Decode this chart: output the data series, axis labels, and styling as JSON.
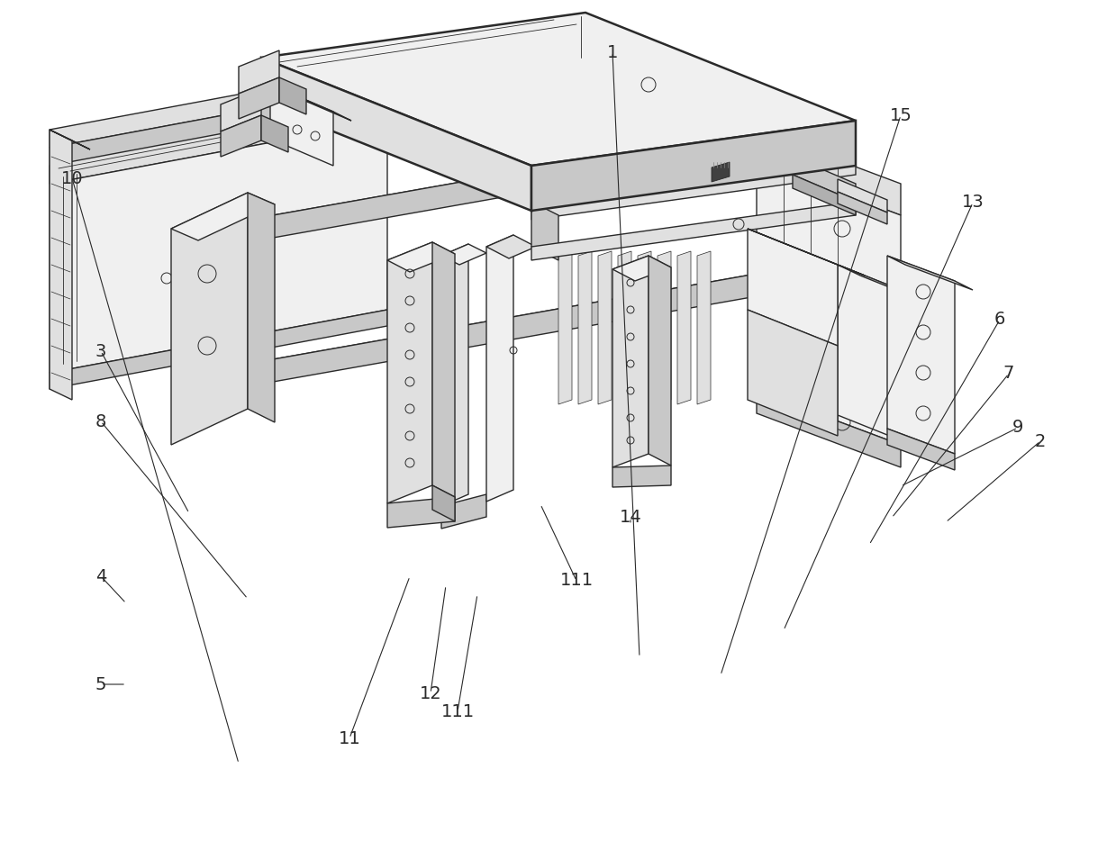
{
  "bg": "#ffffff",
  "lc": "#2a2a2a",
  "lw": 1.0,
  "tlw": 0.6,
  "thw": 1.8,
  "fig_w": 12.39,
  "fig_h": 9.34,
  "dpi": 100,
  "label_fs": 14,
  "gray_light": "#f0f0f0",
  "gray_mid": "#e0e0e0",
  "gray_dark": "#c8c8c8",
  "gray_darker": "#b0b0b0"
}
